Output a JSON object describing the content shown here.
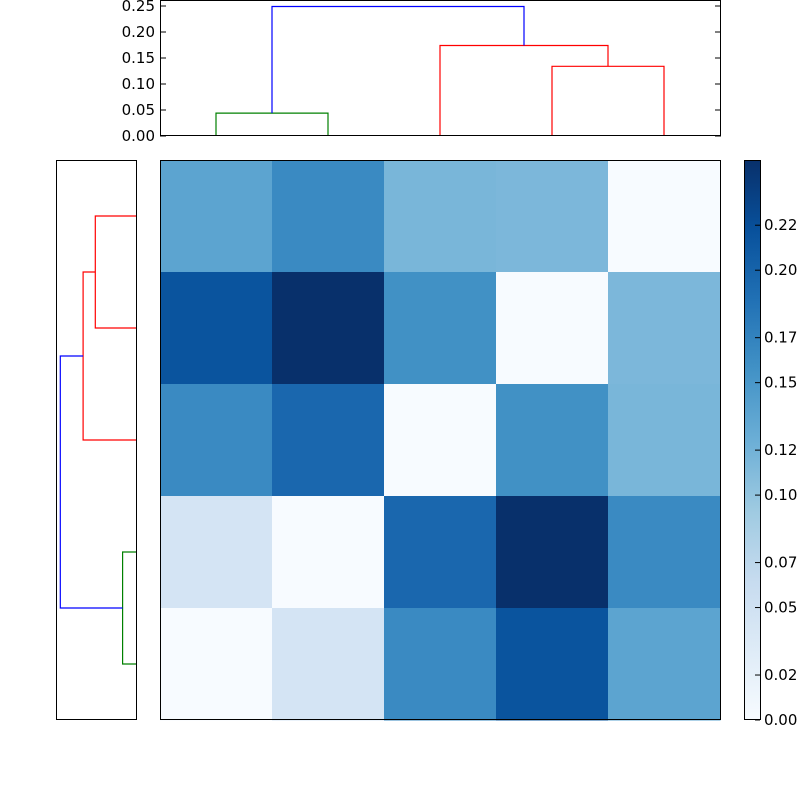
{
  "chart_data": [
    {
      "type": "dendrogram",
      "orientation": "top",
      "ylim": [
        0,
        0.25
      ],
      "yticks": [
        "0.00",
        "0.05",
        "0.10",
        "0.15",
        "0.20",
        "0.25"
      ],
      "leaf_positions": [
        1,
        2,
        3,
        4,
        5
      ],
      "links": [
        {
          "x": [
            1,
            1,
            2,
            2
          ],
          "y": [
            0,
            0.044,
            0.044,
            0
          ],
          "color": "#008000"
        },
        {
          "x": [
            4,
            4,
            5,
            5
          ],
          "y": [
            0,
            0.134,
            0.134,
            0
          ],
          "color": "#ff0000"
        },
        {
          "x": [
            3,
            3,
            4.5,
            4.5
          ],
          "y": [
            0,
            0.174,
            0.174,
            0.134
          ],
          "color": "#ff0000"
        },
        {
          "x": [
            1.5,
            1.5,
            3.75,
            3.75
          ],
          "y": [
            0.044,
            0.249,
            0.249,
            0.174
          ],
          "color": "#0000ff"
        }
      ]
    },
    {
      "type": "dendrogram",
      "orientation": "right",
      "leaf_positions": [
        1,
        2,
        3,
        4,
        5
      ],
      "links": [
        {
          "x": [
            1,
            1,
            2,
            2
          ],
          "y": [
            0,
            0.044,
            0.044,
            0
          ],
          "color": "#008000"
        },
        {
          "x": [
            4,
            4,
            5,
            5
          ],
          "y": [
            0,
            0.134,
            0.134,
            0
          ],
          "color": "#ff0000"
        },
        {
          "x": [
            3,
            3,
            4.5,
            4.5
          ],
          "y": [
            0,
            0.174,
            0.174,
            0.134
          ],
          "color": "#ff0000"
        },
        {
          "x": [
            1.5,
            1.5,
            3.75,
            3.75
          ],
          "y": [
            0.044,
            0.249,
            0.249,
            0.174
          ],
          "color": "#0000ff"
        }
      ]
    },
    {
      "type": "heatmap",
      "rows": 5,
      "cols": 5,
      "values": [
        [
          0.136,
          0.163,
          0.116,
          0.114,
          0.0
        ],
        [
          0.215,
          0.249,
          0.157,
          0.0,
          0.114
        ],
        [
          0.163,
          0.196,
          0.0,
          0.157,
          0.116
        ],
        [
          0.044,
          0.0,
          0.196,
          0.249,
          0.163
        ],
        [
          0.0,
          0.044,
          0.163,
          0.215,
          0.136
        ]
      ],
      "vmin": 0,
      "vmax": 0.249,
      "colormap": "Blues",
      "colorbar_ticks": [
        "0.00",
        "0.02",
        "0.05",
        "0.07",
        "0.10",
        "0.12",
        "0.15",
        "0.17",
        "0.20",
        "0.22"
      ]
    }
  ]
}
